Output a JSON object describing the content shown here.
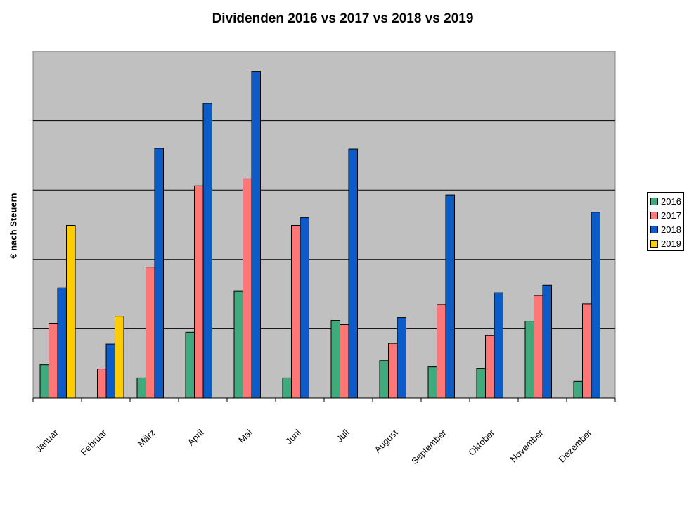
{
  "chart_data": {
    "type": "bar",
    "title": "Dividenden 2016 vs 2017 vs 2018 vs 2019",
    "xlabel": "",
    "ylabel": "€ nach Steuern",
    "categories": [
      "Januar",
      "Februar",
      "März",
      "April",
      "Mai",
      "Juni",
      "Juli",
      "August",
      "September",
      "Oktober",
      "November",
      "Dezember"
    ],
    "ylim": [
      0,
      5
    ],
    "grid": true,
    "legend_position": "right",
    "series": [
      {
        "name": "2016",
        "color": "#3faa7b",
        "values": [
          0.48,
          0,
          0.29,
          0.95,
          1.54,
          0.29,
          1.12,
          0.54,
          0.45,
          0.43,
          1.11,
          0.24
        ]
      },
      {
        "name": "2017",
        "color": "#ff7676",
        "values": [
          1.08,
          0.42,
          1.89,
          3.06,
          3.16,
          2.49,
          1.06,
          0.79,
          1.35,
          0.9,
          1.48,
          1.36
        ]
      },
      {
        "name": "2018",
        "color": "#0b5cc9",
        "values": [
          1.59,
          0.78,
          3.6,
          4.25,
          4.71,
          2.6,
          3.59,
          1.16,
          2.93,
          1.52,
          1.63,
          2.68
        ]
      },
      {
        "name": "2019",
        "color": "#ffcc00",
        "values": [
          2.49,
          1.18,
          null,
          null,
          null,
          null,
          null,
          null,
          null,
          null,
          null,
          null
        ]
      }
    ]
  }
}
